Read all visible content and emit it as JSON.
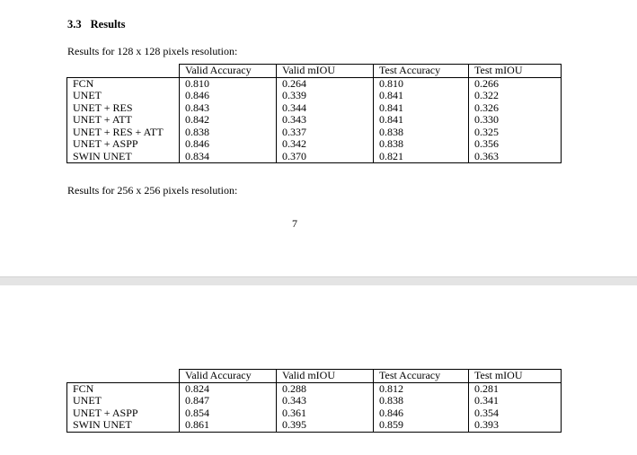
{
  "section": {
    "number": "3.3",
    "title": "Results"
  },
  "captions": {
    "res128": "Results for 128 x 128 pixels resolution:",
    "res256": "Results for 256 x 256 pixels resolution:"
  },
  "page_number": "7",
  "tables": {
    "res128": {
      "columns": [
        "",
        "Valid Accuracy",
        "Valid mIOU",
        "Test Accuracy",
        "Test mIOU"
      ],
      "rows": [
        [
          "FCN",
          "0.810",
          "0.264",
          "0.810",
          "0.266"
        ],
        [
          "UNET",
          "0.846",
          "0.339",
          "0.841",
          "0.322"
        ],
        [
          "UNET + RES",
          "0.843",
          "0.344",
          "0.841",
          "0.326"
        ],
        [
          "UNET + ATT",
          "0.842",
          "0.343",
          "0.841",
          "0.330"
        ],
        [
          "UNET + RES + ATT",
          "0.838",
          "0.337",
          "0.838",
          "0.325"
        ],
        [
          "UNET + ASPP",
          "0.846",
          "0.342",
          "0.838",
          "0.356"
        ],
        [
          "SWIN UNET",
          "0.834",
          "0.370",
          "0.821",
          "0.363"
        ]
      ]
    },
    "res256": {
      "columns": [
        "",
        "Valid Accuracy",
        "Valid mIOU",
        "Test Accuracy",
        "Test mIOU"
      ],
      "rows": [
        [
          "FCN",
          "0.824",
          "0.288",
          "0.812",
          "0.281"
        ],
        [
          "UNET",
          "0.847",
          "0.343",
          "0.838",
          "0.341"
        ],
        [
          "UNET + ASPP",
          "0.854",
          "0.361",
          "0.846",
          "0.354"
        ],
        [
          "SWIN UNET",
          "0.861",
          "0.395",
          "0.859",
          "0.393"
        ]
      ]
    }
  }
}
